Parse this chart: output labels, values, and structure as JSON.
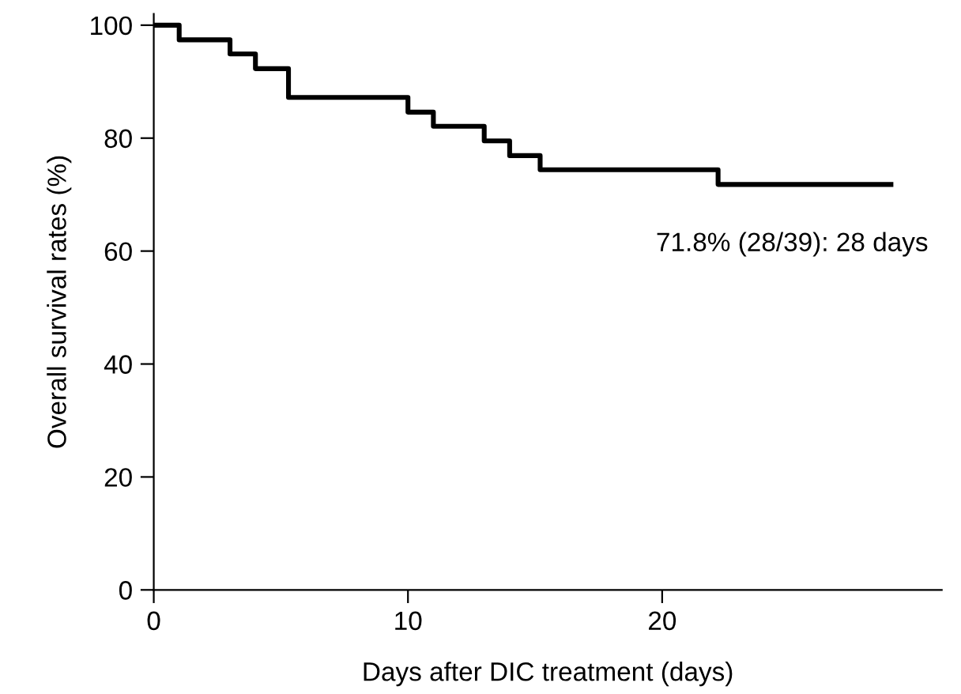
{
  "chart_data": {
    "type": "step",
    "xlabel": "Days after DIC treatment (days)",
    "ylabel": "Overall survival rates (%)",
    "series": [
      {
        "color": "#000000",
        "x": [
          0,
          1,
          3,
          4,
          5.3,
          10,
          11,
          13,
          14,
          15.2,
          22.2,
          29
        ],
        "values": [
          100,
          97.4,
          94.9,
          92.3,
          87.2,
          84.6,
          82.1,
          79.5,
          76.9,
          74.4,
          71.8,
          71.8
        ]
      }
    ],
    "annotations": [
      "71.8% (28/39): 28 days"
    ],
    "xlim": [
      0,
      31
    ],
    "xticks": [
      0,
      10,
      20
    ],
    "ylim": [
      0,
      102
    ],
    "yticks": [
      0,
      20,
      40,
      60,
      80,
      100
    ],
    "grid": false,
    "legend": false
  }
}
